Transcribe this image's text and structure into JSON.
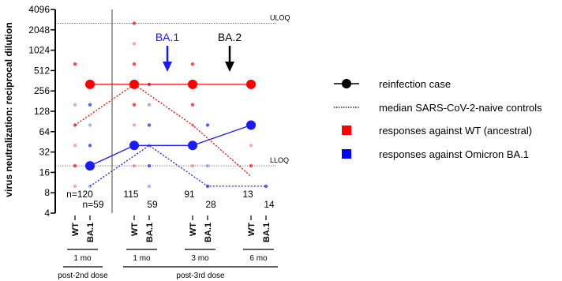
{
  "chart_data": {
    "type": "scatter",
    "ylabel": "virus neutralization: reciprocal dilution",
    "y_scale": "log2",
    "ylim": [
      4,
      4096
    ],
    "y_ticks": [
      "4",
      "8",
      "16",
      "32",
      "64",
      "128",
      "256",
      "512",
      "1024",
      "2048",
      "4096"
    ],
    "grid": false,
    "groups": [
      {
        "id": "g1",
        "variant_label": "WT",
        "count_label": "n=120"
      },
      {
        "id": "g2",
        "variant_label": "BA.1",
        "count_label": "n=59"
      },
      {
        "id": "g3",
        "variant_label": "WT",
        "count_label": "115"
      },
      {
        "id": "g4",
        "variant_label": "BA.1",
        "count_label": "59"
      },
      {
        "id": "g5",
        "variant_label": "WT",
        "count_label": "91"
      },
      {
        "id": "g6",
        "variant_label": "BA.1",
        "count_label": "28"
      },
      {
        "id": "g7",
        "variant_label": "WT",
        "count_label": "13"
      },
      {
        "id": "g8",
        "variant_label": "BA.1",
        "count_label": "14"
      }
    ],
    "timepoints": [
      {
        "label": "1 mo",
        "phase": "post-2nd dose"
      },
      {
        "label": "1 mo",
        "phase": "post-3rd dose"
      },
      {
        "label": "3 mo",
        "phase": "post-3rd dose"
      },
      {
        "label": "6 mo",
        "phase": "post-3rd dose"
      }
    ],
    "phases": [
      "post-2nd dose",
      "post-3rd dose"
    ],
    "reference_lines": [
      {
        "label": "ULOQ",
        "value": 2560
      },
      {
        "label": "LLOQ",
        "value": 20
      }
    ],
    "annotations": [
      {
        "label": "BA.1",
        "color": "#1a1aff",
        "between": [
          "1 mo",
          "3 mo"
        ],
        "phase": "post-3rd dose"
      },
      {
        "label": "BA.2",
        "color": "#000000",
        "between": [
          "3 mo",
          "6 mo"
        ],
        "phase": "post-3rd dose"
      }
    ],
    "series": [
      {
        "name": "reinfection case",
        "color_wt": "#ff0000",
        "color_ba1": "#1a1aff",
        "wt": [
          320,
          320,
          320,
          320
        ],
        "ba1": [
          20,
          40,
          40,
          80
        ]
      },
      {
        "name": "median SARS-CoV-2-naive controls",
        "wt": [
          80,
          320,
          80,
          14
        ],
        "ba1": [
          10,
          40,
          10,
          10
        ]
      }
    ],
    "individual_points": {
      "g1": [
        640,
        160,
        80,
        40,
        20,
        10
      ],
      "g2": [
        160,
        80,
        40,
        10
      ],
      "g3": [
        2560,
        1280,
        640,
        320,
        160,
        80,
        40,
        20
      ],
      "g4": [
        320,
        160,
        80,
        40,
        20,
        10
      ],
      "g5": [
        640,
        320,
        160,
        80,
        40,
        20
      ],
      "g6": [
        80,
        20,
        10
      ],
      "g7": [
        80,
        40,
        20
      ],
      "g8": [
        10
      ]
    },
    "legend": {
      "placement": "right",
      "entries": [
        {
          "label": "reinfection case",
          "marker": "line-dot"
        },
        {
          "label": "median SARS-CoV-2-naive controls",
          "marker": "dotted-line"
        },
        {
          "label": "responses against WT (ancestral)",
          "marker": "square",
          "color": "#ff0000"
        },
        {
          "label": "responses against Omicron BA.1",
          "marker": "square",
          "color": "#0000ff"
        }
      ]
    }
  }
}
